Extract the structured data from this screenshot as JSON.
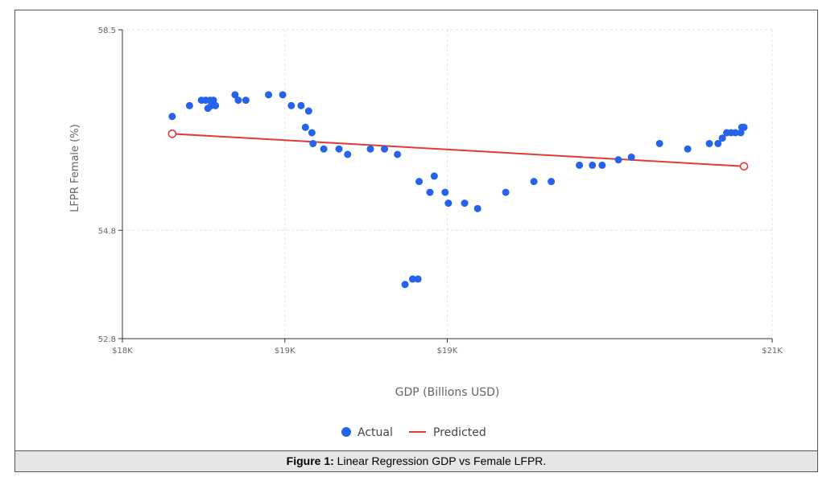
{
  "chart_data": {
    "type": "scatter",
    "title": "",
    "xlabel": "GDP (Billions USD)",
    "ylabel": "LFPR Female (%)",
    "xlim": [
      18000,
      21000
    ],
    "ylim": [
      52.8,
      58.5
    ],
    "x_ticks": [
      {
        "value": 18000,
        "label": "$18K"
      },
      {
        "value": 18750,
        "label": "$19K"
      },
      {
        "value": 19500,
        "label": "$19K"
      },
      {
        "value": 21000,
        "label": "$21K"
      }
    ],
    "y_ticks": [
      {
        "value": 52.8,
        "label": "52.8"
      },
      {
        "value": 54.8,
        "label": "54.8"
      },
      {
        "value": 58.5,
        "label": "58.5"
      }
    ],
    "grid": true,
    "legend": [
      "Actual",
      "Predicted"
    ],
    "legend_position": "bottom-center",
    "series": [
      {
        "name": "Actual",
        "color": "#2563eb",
        "points": [
          {
            "x": 18230,
            "y": 56.9
          },
          {
            "x": 18310,
            "y": 57.1
          },
          {
            "x": 18365,
            "y": 57.2
          },
          {
            "x": 18385,
            "y": 57.2
          },
          {
            "x": 18395,
            "y": 57.05
          },
          {
            "x": 18405,
            "y": 57.2
          },
          {
            "x": 18410,
            "y": 57.1
          },
          {
            "x": 18420,
            "y": 57.2
          },
          {
            "x": 18430,
            "y": 57.1
          },
          {
            "x": 18520,
            "y": 57.3
          },
          {
            "x": 18535,
            "y": 57.2
          },
          {
            "x": 18570,
            "y": 57.2
          },
          {
            "x": 18675,
            "y": 57.3
          },
          {
            "x": 18740,
            "y": 57.3
          },
          {
            "x": 18780,
            "y": 57.1
          },
          {
            "x": 18825,
            "y": 57.1
          },
          {
            "x": 18860,
            "y": 57.0
          },
          {
            "x": 18845,
            "y": 56.7
          },
          {
            "x": 18875,
            "y": 56.6
          },
          {
            "x": 18880,
            "y": 56.4
          },
          {
            "x": 18930,
            "y": 56.3
          },
          {
            "x": 19000,
            "y": 56.3
          },
          {
            "x": 19040,
            "y": 56.2
          },
          {
            "x": 19145,
            "y": 56.3
          },
          {
            "x": 19210,
            "y": 56.3
          },
          {
            "x": 19270,
            "y": 56.2
          },
          {
            "x": 19370,
            "y": 55.7
          },
          {
            "x": 19420,
            "y": 55.5
          },
          {
            "x": 19440,
            "y": 55.8
          },
          {
            "x": 19490,
            "y": 55.5
          },
          {
            "x": 19505,
            "y": 55.3
          },
          {
            "x": 19580,
            "y": 55.3
          },
          {
            "x": 19640,
            "y": 55.2
          },
          {
            "x": 19770,
            "y": 55.5
          },
          {
            "x": 19900,
            "y": 55.7
          },
          {
            "x": 19980,
            "y": 55.7
          },
          {
            "x": 20110,
            "y": 56.0
          },
          {
            "x": 20170,
            "y": 56.0
          },
          {
            "x": 20215,
            "y": 56.0
          },
          {
            "x": 20290,
            "y": 56.1
          },
          {
            "x": 20350,
            "y": 56.15
          },
          {
            "x": 20480,
            "y": 56.4
          },
          {
            "x": 20610,
            "y": 56.3
          },
          {
            "x": 20710,
            "y": 56.4
          },
          {
            "x": 20750,
            "y": 56.4
          },
          {
            "x": 20770,
            "y": 56.5
          },
          {
            "x": 20790,
            "y": 56.6
          },
          {
            "x": 20810,
            "y": 56.6
          },
          {
            "x": 20830,
            "y": 56.6
          },
          {
            "x": 20855,
            "y": 56.6
          },
          {
            "x": 20860,
            "y": 56.7
          },
          {
            "x": 20870,
            "y": 56.7
          },
          {
            "x": 19305,
            "y": 53.8
          },
          {
            "x": 19340,
            "y": 53.9
          },
          {
            "x": 19365,
            "y": 53.9
          }
        ]
      },
      {
        "name": "Predicted",
        "color": "#e53935",
        "points": [
          {
            "x": 18230,
            "y": 56.58
          },
          {
            "x": 20870,
            "y": 55.98
          }
        ]
      }
    ]
  },
  "caption": {
    "label": "Figure 1:",
    "text": " Linear Regression GDP vs Female LFPR."
  }
}
